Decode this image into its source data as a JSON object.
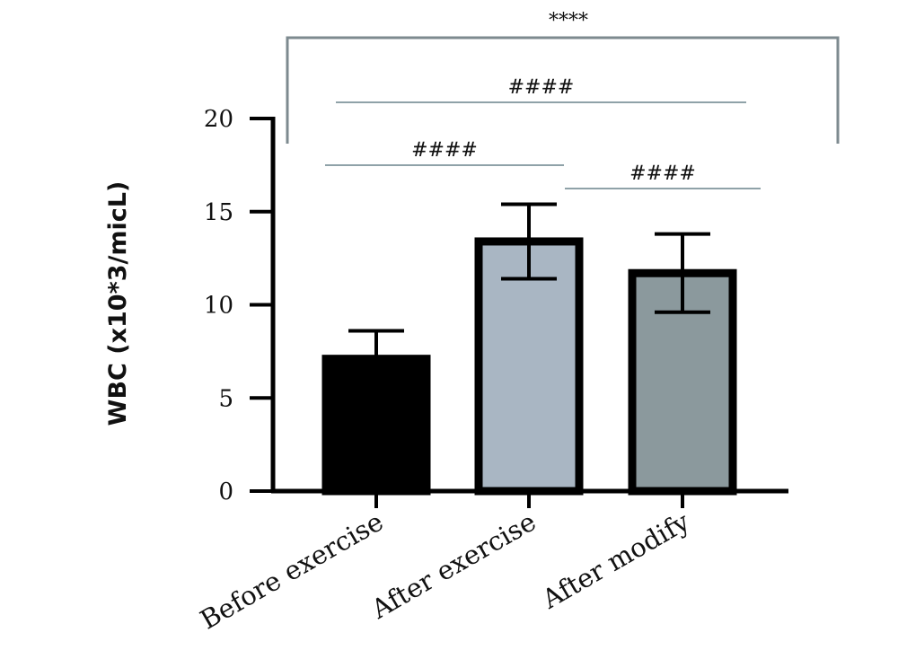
{
  "chart_data": {
    "type": "bar",
    "ylabel": "WBC (x10*3/micL)",
    "xlabel": "",
    "title": "",
    "ylim": [
      0,
      20
    ],
    "yticks": [
      0,
      5,
      10,
      15,
      20
    ],
    "grid": false,
    "categories": [
      "Before exercise",
      "After exercise",
      "After modify"
    ],
    "values": [
      7.1,
      13.4,
      11.7
    ],
    "error_low": [
      7.1,
      11.4,
      9.6
    ],
    "error_high": [
      8.6,
      15.4,
      13.8
    ],
    "bar_colors": [
      "#000000",
      "#a9b6c3",
      "#8b999d"
    ],
    "significance": [
      {
        "label": "####",
        "from": 0,
        "to": 1
      },
      {
        "label": "####",
        "from": 1,
        "to": 2
      },
      {
        "label": "####",
        "from": 0,
        "to": 2
      },
      {
        "label": "****",
        "from": 0,
        "to": 2,
        "style": "bracket"
      }
    ]
  }
}
